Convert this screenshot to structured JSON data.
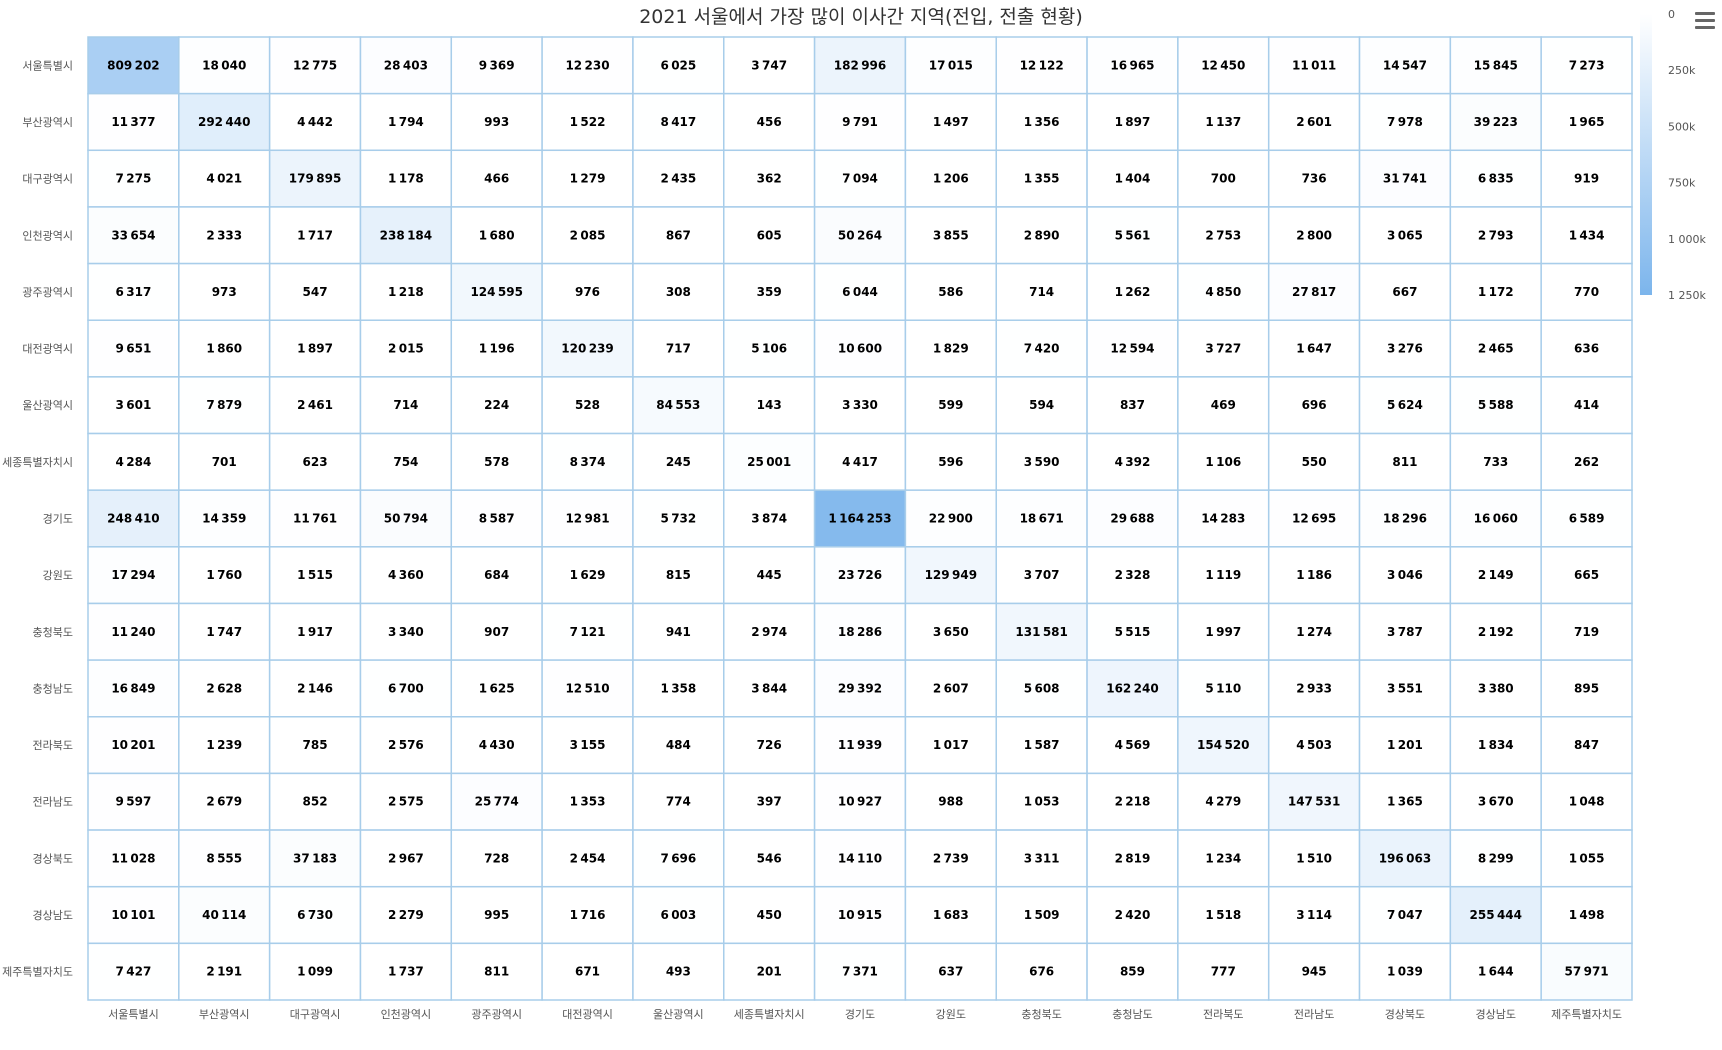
{
  "chart_data": {
    "type": "heatmap",
    "title": "2021 서울에서 가장 많이 이사간 지역(전입, 전출 현황)",
    "x_categories": [
      "서울특별시",
      "부산광역시",
      "대구광역시",
      "인천광역시",
      "광주광역시",
      "대전광역시",
      "울산광역시",
      "세종특별자치시",
      "경기도",
      "강원도",
      "충청북도",
      "충청남도",
      "전라북도",
      "전라남도",
      "경상북도",
      "경상남도",
      "제주특별자치도"
    ],
    "y_categories": [
      "서울특별시",
      "부산광역시",
      "대구광역시",
      "인천광역시",
      "광주광역시",
      "대전광역시",
      "울산광역시",
      "세종특별자치시",
      "경기도",
      "강원도",
      "충청북도",
      "충청남도",
      "전라북도",
      "전라남도",
      "경상북도",
      "경상남도",
      "제주특별자치도"
    ],
    "values": [
      [
        809202,
        18040,
        12775,
        28403,
        9369,
        12230,
        6025,
        3747,
        182996,
        17015,
        12122,
        16965,
        12450,
        11011,
        14547,
        15845,
        7273
      ],
      [
        11377,
        292440,
        4442,
        1794,
        993,
        1522,
        8417,
        456,
        9791,
        1497,
        1356,
        1897,
        1137,
        2601,
        7978,
        39223,
        1965
      ],
      [
        7275,
        4021,
        179895,
        1178,
        466,
        1279,
        2435,
        362,
        7094,
        1206,
        1355,
        1404,
        700,
        736,
        31741,
        6835,
        919
      ],
      [
        33654,
        2333,
        1717,
        238184,
        1680,
        2085,
        867,
        605,
        50264,
        3855,
        2890,
        5561,
        2753,
        2800,
        3065,
        2793,
        1434
      ],
      [
        6317,
        973,
        547,
        1218,
        124595,
        976,
        308,
        359,
        6044,
        586,
        714,
        1262,
        4850,
        27817,
        667,
        1172,
        770
      ],
      [
        9651,
        1860,
        1897,
        2015,
        1196,
        120239,
        717,
        5106,
        10600,
        1829,
        7420,
        12594,
        3727,
        1647,
        3276,
        2465,
        636
      ],
      [
        3601,
        7879,
        2461,
        714,
        224,
        528,
        84553,
        143,
        3330,
        599,
        594,
        837,
        469,
        696,
        5624,
        5588,
        414
      ],
      [
        4284,
        701,
        623,
        754,
        578,
        8374,
        245,
        25001,
        4417,
        596,
        3590,
        4392,
        1106,
        550,
        811,
        733,
        262
      ],
      [
        248410,
        14359,
        11761,
        50794,
        8587,
        12981,
        5732,
        3874,
        1164253,
        22900,
        18671,
        29688,
        14283,
        12695,
        18296,
        16060,
        6589
      ],
      [
        17294,
        1760,
        1515,
        4360,
        684,
        1629,
        815,
        445,
        23726,
        129949,
        3707,
        2328,
        1119,
        1186,
        3046,
        2149,
        665
      ],
      [
        11240,
        1747,
        1917,
        3340,
        907,
        7121,
        941,
        2974,
        18286,
        3650,
        131581,
        5515,
        1997,
        1274,
        3787,
        2192,
        719
      ],
      [
        16849,
        2628,
        2146,
        6700,
        1625,
        12510,
        1358,
        3844,
        29392,
        2607,
        5608,
        162240,
        5110,
        2933,
        3551,
        3380,
        895
      ],
      [
        10201,
        1239,
        785,
        2576,
        4430,
        3155,
        484,
        726,
        11939,
        1017,
        1587,
        4569,
        154520,
        4503,
        1201,
        1834,
        847
      ],
      [
        9597,
        2679,
        852,
        2575,
        25774,
        1353,
        774,
        397,
        10927,
        988,
        1053,
        2218,
        4279,
        147531,
        1365,
        3670,
        1048
      ],
      [
        11028,
        8555,
        37183,
        2967,
        728,
        2454,
        7696,
        546,
        14110,
        2739,
        3311,
        2819,
        1234,
        1510,
        196063,
        8299,
        1055
      ],
      [
        10101,
        40114,
        6730,
        2279,
        995,
        1716,
        6003,
        450,
        10915,
        1683,
        1509,
        2420,
        1518,
        3114,
        7047,
        255444,
        1498
      ],
      [
        7427,
        2191,
        1099,
        1737,
        811,
        671,
        493,
        201,
        7371,
        637,
        676,
        859,
        777,
        945,
        1039,
        1644,
        57971
      ]
    ],
    "color_axis": {
      "min": 0,
      "max": 1250000,
      "min_color": "#ffffff",
      "max_color": "#7cb5ec",
      "tick_values": [
        0,
        250000,
        500000,
        750000,
        1000000,
        1250000
      ],
      "tick_labels": [
        "0",
        "250k",
        "500k",
        "750k",
        "1 000k",
        "1 250k"
      ]
    },
    "cell_border_color": "#a8cdea",
    "data_label_color": "#000000",
    "legend_position": "right"
  },
  "ui": {
    "menu_icon": "hamburger-menu-icon"
  }
}
